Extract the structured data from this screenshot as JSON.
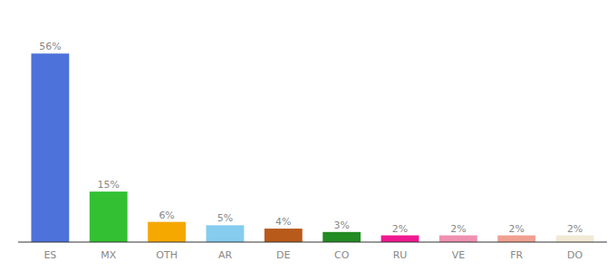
{
  "chart_data": {
    "type": "bar",
    "categories": [
      "ES",
      "MX",
      "OTH",
      "AR",
      "DE",
      "CO",
      "RU",
      "VE",
      "FR",
      "DO"
    ],
    "values": [
      56,
      15,
      6,
      5,
      4,
      3,
      2,
      2,
      2,
      2
    ],
    "value_labels": [
      "56%",
      "15%",
      "6%",
      "5%",
      "4%",
      "3%",
      "2%",
      "2%",
      "2%",
      "2%"
    ],
    "colors": [
      "#4d72d9",
      "#33c133",
      "#f5a800",
      "#85ccee",
      "#b85a1a",
      "#228b22",
      "#f01890",
      "#f090b0",
      "#f0a090",
      "#f0ead6"
    ],
    "ylim": [
      0,
      66
    ],
    "data_labels": true,
    "grid": false,
    "tick_labels": "x"
  }
}
